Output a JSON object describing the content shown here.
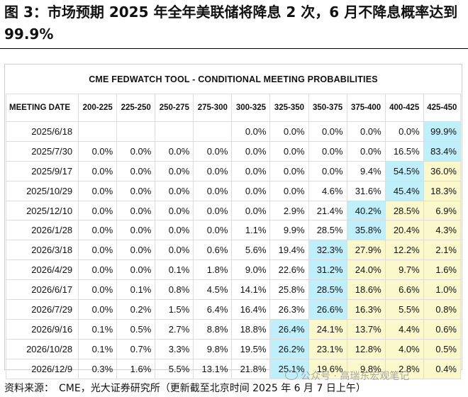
{
  "figure": {
    "title": "图 3：市场预期 2025 年全年美联储将降息 2 次，6 月不降息概率达到 99.9%"
  },
  "table": {
    "caption": "CME FEDWATCH TOOL - CONDITIONAL MEETING PROBABILITIES",
    "header": [
      "MEETING DATE",
      "200-225",
      "225-250",
      "250-275",
      "275-300",
      "300-325",
      "325-350",
      "350-375",
      "375-400",
      "400-425",
      "425-450"
    ],
    "rows": [
      {
        "date": "2025/6/18",
        "values": [
          "",
          "",
          "",
          "",
          "0.0%",
          "0.0%",
          "0.0%",
          "0.0%",
          "0.0%",
          "99.9%"
        ]
      },
      {
        "date": "2025/7/30",
        "values": [
          "0.0%",
          "0.0%",
          "0.0%",
          "0.0%",
          "0.0%",
          "0.0%",
          "0.0%",
          "0.0%",
          "16.5%",
          "83.4%"
        ]
      },
      {
        "date": "2025/9/17",
        "values": [
          "0.0%",
          "0.0%",
          "0.0%",
          "0.0%",
          "0.0%",
          "0.0%",
          "0.0%",
          "9.4%",
          "54.5%",
          "36.0%"
        ]
      },
      {
        "date": "2025/10/29",
        "values": [
          "0.0%",
          "0.0%",
          "0.0%",
          "0.0%",
          "0.0%",
          "0.0%",
          "4.6%",
          "31.6%",
          "45.4%",
          "18.3%"
        ]
      },
      {
        "date": "2025/12/10",
        "values": [
          "0.0%",
          "0.0%",
          "0.0%",
          "0.0%",
          "0.0%",
          "2.9%",
          "21.4%",
          "40.2%",
          "28.5%",
          "6.9%"
        ]
      },
      {
        "date": "2026/1/28",
        "values": [
          "0.0%",
          "0.0%",
          "0.0%",
          "0.0%",
          "1.1%",
          "9.9%",
          "28.5%",
          "35.8%",
          "20.4%",
          "4.3%"
        ]
      },
      {
        "date": "2026/3/18",
        "values": [
          "0.0%",
          "0.0%",
          "0.0%",
          "0.6%",
          "5.6%",
          "19.4%",
          "32.3%",
          "27.9%",
          "12.2%",
          "2.1%"
        ]
      },
      {
        "date": "2026/4/29",
        "values": [
          "0.0%",
          "0.0%",
          "0.1%",
          "1.8%",
          "9.0%",
          "22.6%",
          "31.2%",
          "24.0%",
          "9.7%",
          "1.6%"
        ]
      },
      {
        "date": "2026/6/17",
        "values": [
          "0.0%",
          "0.1%",
          "0.8%",
          "4.5%",
          "14.1%",
          "25.8%",
          "28.5%",
          "18.6%",
          "6.6%",
          "1.0%"
        ]
      },
      {
        "date": "2026/7/29",
        "values": [
          "0.0%",
          "0.2%",
          "1.5%",
          "6.4%",
          "16.4%",
          "26.3%",
          "26.6%",
          "16.3%",
          "5.5%",
          "0.8%"
        ]
      },
      {
        "date": "2026/9/16",
        "values": [
          "0.1%",
          "0.5%",
          "2.7%",
          "8.8%",
          "18.8%",
          "26.4%",
          "24.1%",
          "13.7%",
          "4.4%",
          "0.6%"
        ]
      },
      {
        "date": "2026/10/28",
        "values": [
          "0.1%",
          "0.7%",
          "3.3%",
          "9.8%",
          "19.5%",
          "26.2%",
          "23.1%",
          "12.8%",
          "4.0%",
          "0.5%"
        ]
      },
      {
        "date": "2026/12/9",
        "values": [
          "0.3%",
          "1.6%",
          "5.5%",
          "13.1%",
          "21.8%",
          "25.1%",
          "19.6%",
          "9.8%",
          "2.8%",
          "0.4%"
        ]
      }
    ],
    "blue_cells": [
      [
        0,
        9
      ],
      [
        1,
        9
      ],
      [
        2,
        8
      ],
      [
        3,
        8
      ],
      [
        4,
        7
      ],
      [
        5,
        7
      ],
      [
        6,
        6
      ],
      [
        7,
        6
      ],
      [
        8,
        6
      ],
      [
        9,
        6
      ],
      [
        10,
        5
      ],
      [
        11,
        5
      ],
      [
        12,
        5
      ]
    ],
    "yellow_cells": [
      [
        2,
        9
      ],
      [
        3,
        9
      ],
      [
        4,
        8
      ],
      [
        4,
        9
      ],
      [
        5,
        8
      ],
      [
        5,
        9
      ],
      [
        6,
        7
      ],
      [
        6,
        8
      ],
      [
        6,
        9
      ],
      [
        7,
        7
      ],
      [
        7,
        8
      ],
      [
        7,
        9
      ],
      [
        8,
        7
      ],
      [
        8,
        8
      ],
      [
        8,
        9
      ],
      [
        9,
        7
      ],
      [
        9,
        8
      ],
      [
        9,
        9
      ],
      [
        10,
        6
      ],
      [
        10,
        7
      ],
      [
        10,
        8
      ],
      [
        10,
        9
      ],
      [
        11,
        6
      ],
      [
        11,
        7
      ],
      [
        11,
        8
      ],
      [
        11,
        9
      ],
      [
        12,
        6
      ],
      [
        12,
        7
      ],
      [
        12,
        8
      ],
      [
        12,
        9
      ]
    ],
    "colors": {
      "highlight_blue": "#bfeffa",
      "highlight_yellow": "#fbf8cc",
      "grid": "#dcdcdc"
    }
  },
  "source": "资料来源：　CME，光大证券研究所（更新截至北京时间 2025 年 6 月 7 日上午）",
  "watermark": "公众号 · 高瑞东宏观笔记"
}
